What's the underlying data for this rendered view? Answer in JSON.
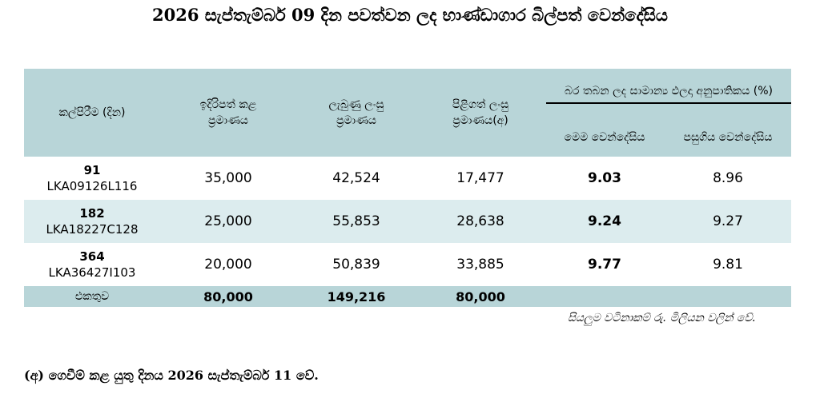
{
  "title": "2026 සැප්තැම්බර් 09 දින පවත්වන ලද භාණ්ඩාගාර බිල්පත් වෙන්දේසිය",
  "headers": {
    "tenor": "කල්පිරීම (දින)",
    "offered": "ඉදිරිපත් කළ ප්‍රමාණය",
    "received": "ලැබුණු ලංසු ප්‍රමාණය",
    "accepted": "පිළිගත් ලංසු ප්‍රමාණය(අ)",
    "yield_group": "බර තබන ලද සාමාන්‍ය ඵලදා අනුපාතිකය (%)",
    "this_auction": "මෙම වෙන්දේසිය",
    "previous_auction": "පසුගිය වෙන්දේසිය"
  },
  "rows": [
    {
      "days": "91",
      "isin": "LKA09126L116",
      "offered": "35,000",
      "received": "42,524",
      "accepted": "17,477",
      "yield_this": "9.03",
      "yield_prev": "8.96"
    },
    {
      "days": "182",
      "isin": "LKA18227C128",
      "offered": "25,000",
      "received": "55,853",
      "accepted": "28,638",
      "yield_this": "9.24",
      "yield_prev": "9.27"
    },
    {
      "days": "364",
      "isin": "LKA36427I103",
      "offered": "20,000",
      "received": "50,839",
      "accepted": "33,885",
      "yield_this": "9.77",
      "yield_prev": "9.81"
    }
  ],
  "total": {
    "label": "එකතුව",
    "offered": "80,000",
    "received": "149,216",
    "accepted": "80,000"
  },
  "note": "සියලුම වටිනාකම් රු. මිලියන වලින් වේ.",
  "footnote": "(අ) ගෙවීම් කළ යුතු දිනය 2026 සැප්තැම්බර් 11 වේ.",
  "colors": {
    "header_bg": "#b8d5d8",
    "alt_row_bg": "#dcecee"
  }
}
